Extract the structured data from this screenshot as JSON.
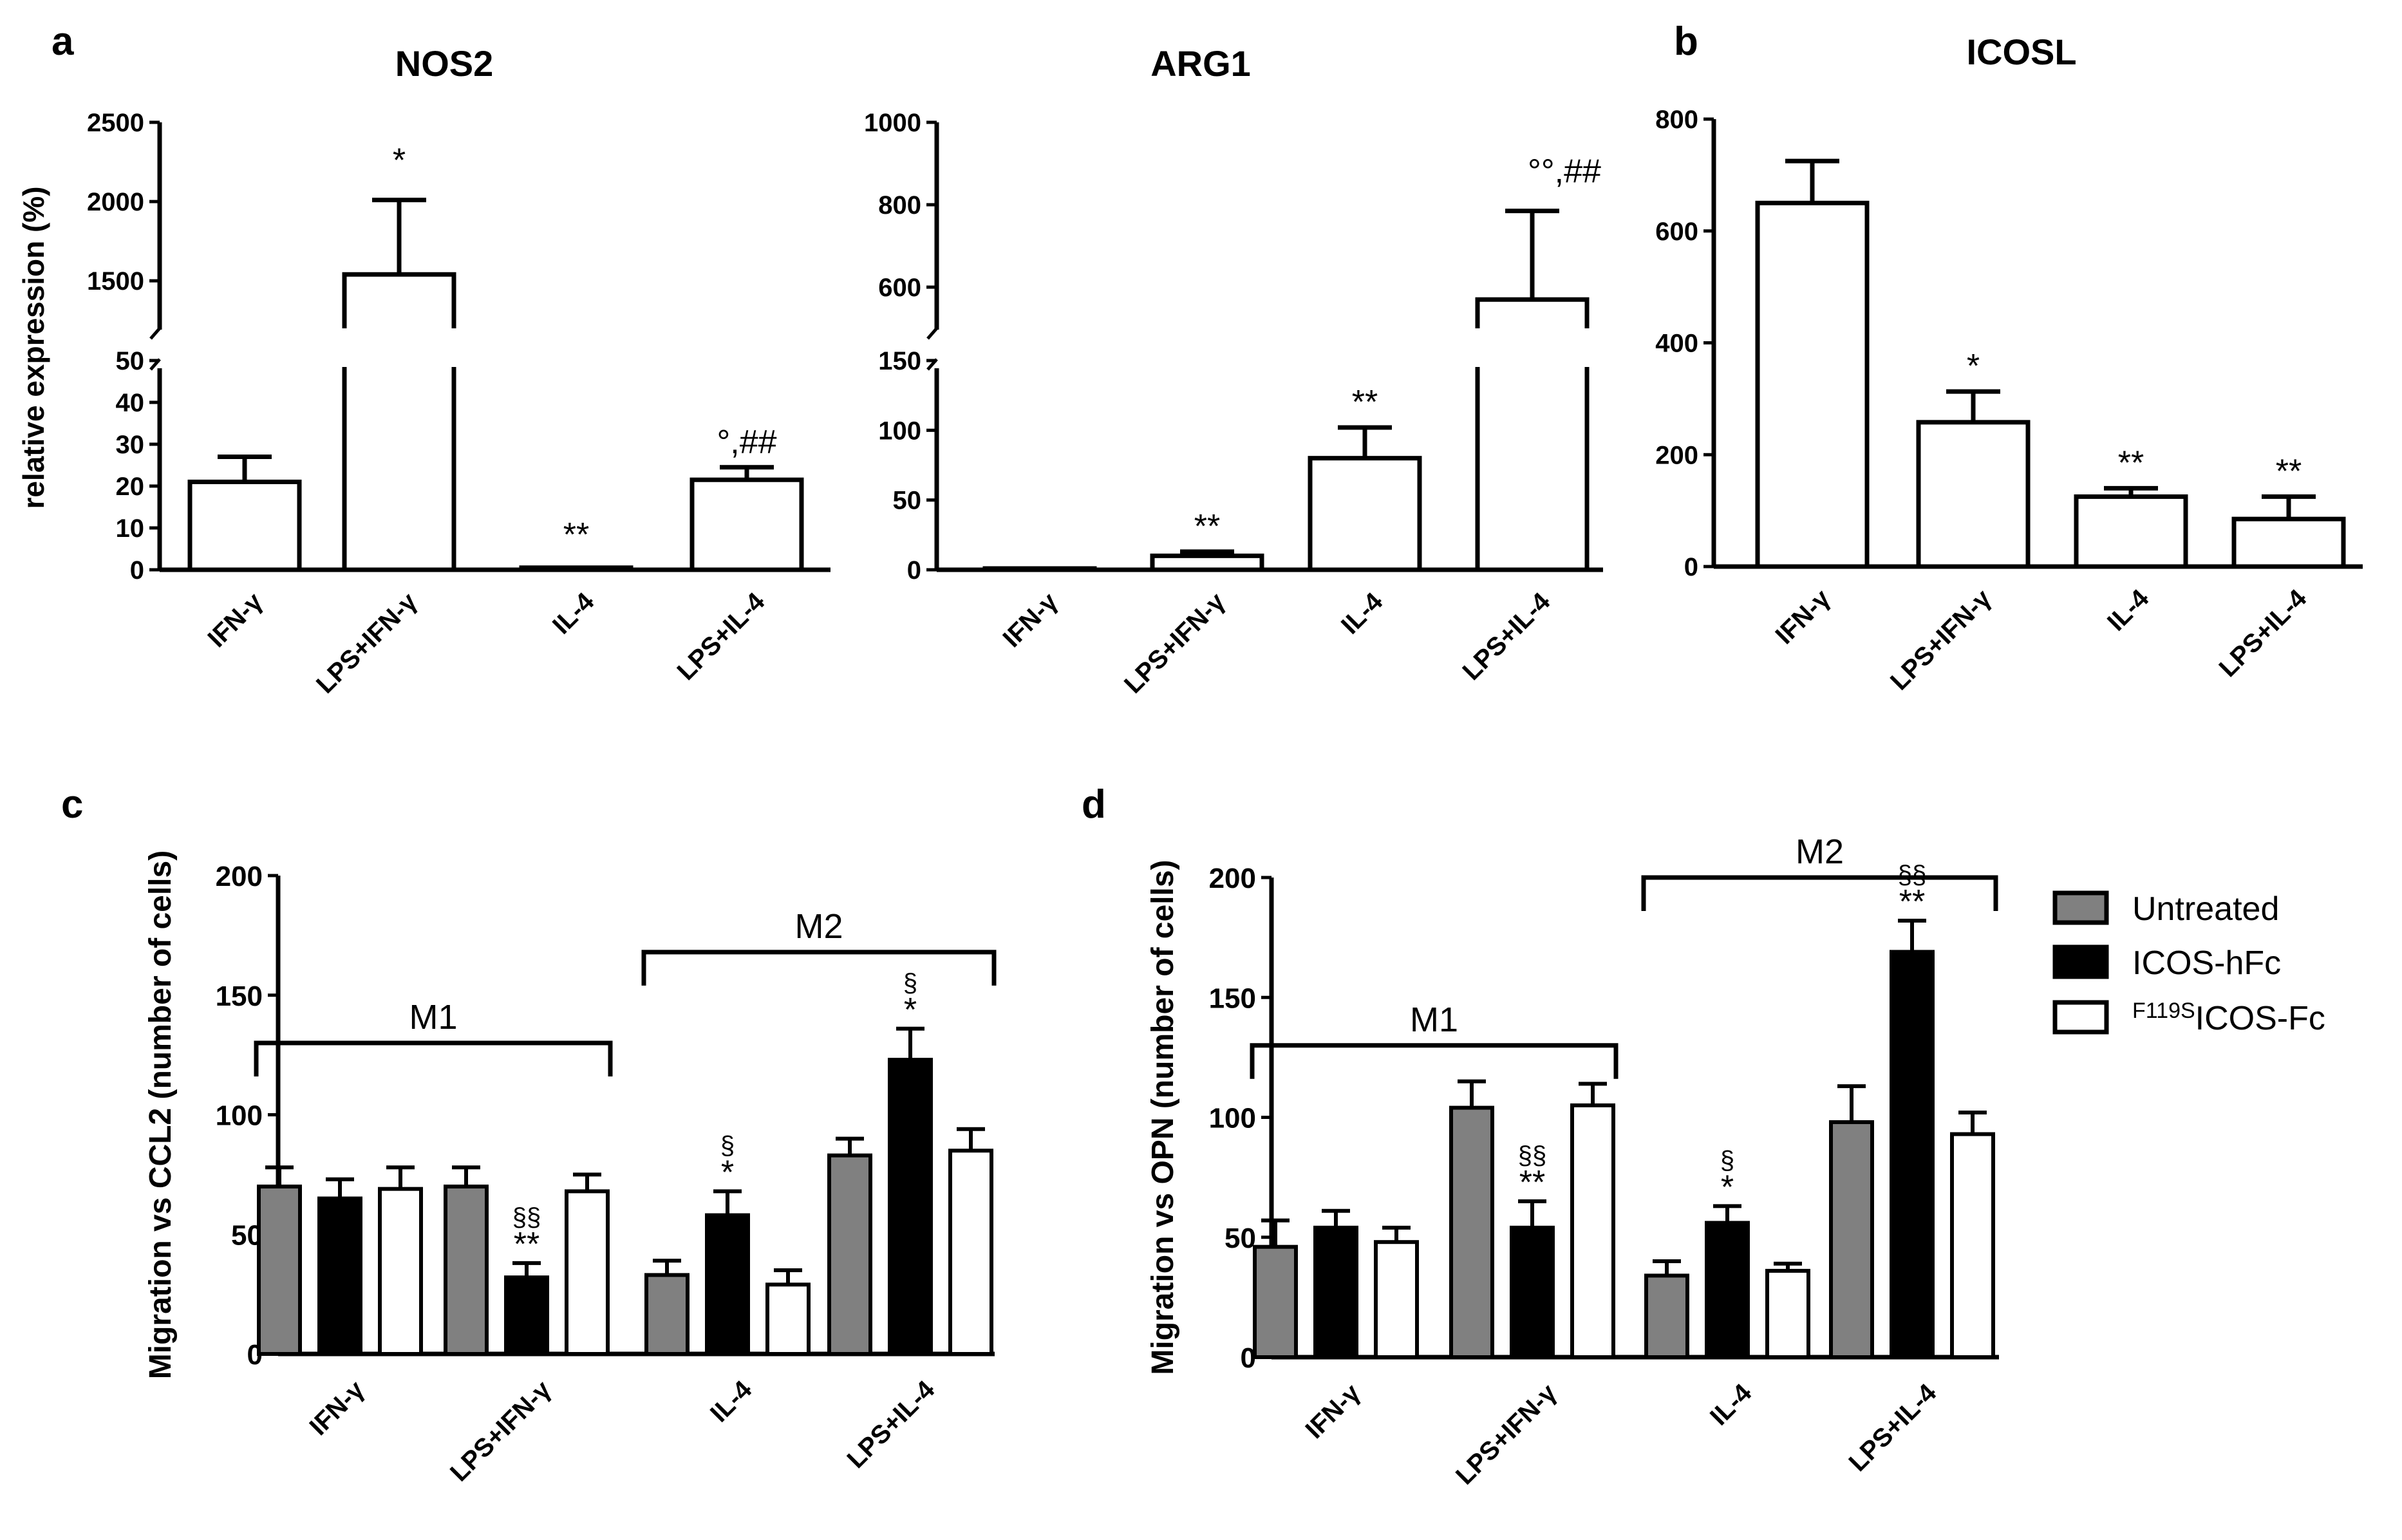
{
  "chart_data": [
    {
      "panel": "a",
      "title": "NOS2",
      "type": "bar",
      "broken_axis": true,
      "ylabel": "relative expression (%)",
      "categories": [
        "IFN-γ",
        "LPS+IFN-γ",
        "IL-4",
        "LPS+IL-4"
      ],
      "values": [
        21,
        1540,
        0.5,
        21.5
      ],
      "errors": [
        6,
        470,
        0,
        3
      ],
      "annotations": [
        "",
        "*",
        "**",
        "°,##"
      ],
      "lower_ylim": [
        0,
        50
      ],
      "lower_ticks": [
        "0",
        "10",
        "20",
        "30",
        "40",
        "50"
      ],
      "upper_ylim": [
        1200,
        2500
      ],
      "upper_ticks": [
        "1500",
        "2000",
        "2500"
      ]
    },
    {
      "panel": "",
      "title": "ARG1",
      "type": "bar",
      "broken_axis": true,
      "categories": [
        "IFN-γ",
        "LPS+IFN-γ",
        "IL-4",
        "LPS+IL-4"
      ],
      "values": [
        0,
        10,
        80,
        570
      ],
      "errors": [
        0,
        3,
        22,
        215
      ],
      "annotations": [
        "",
        "**",
        "**",
        "°°,##"
      ],
      "lower_ylim": [
        0,
        150
      ],
      "lower_ticks": [
        "0",
        "50",
        "100",
        "150"
      ],
      "upper_ylim": [
        500,
        1000
      ],
      "upper_ticks": [
        "600",
        "800",
        "1000"
      ]
    },
    {
      "panel": "b",
      "title": "ICOSL",
      "type": "bar",
      "broken_axis": false,
      "categories": [
        "IFN-γ",
        "LPS+IFN-γ",
        "IL-4",
        "LPS+IL-4"
      ],
      "values": [
        650,
        258,
        125,
        85
      ],
      "errors": [
        75,
        55,
        15,
        40
      ],
      "annotations": [
        "",
        "*",
        "**",
        "**"
      ],
      "ylim": [
        0,
        800
      ],
      "ticks": [
        "0",
        "200",
        "400",
        "600",
        "800"
      ]
    },
    {
      "panel": "c",
      "type": "bar",
      "ylabel": "Migration vs CCL2 (number of cells)",
      "categories": [
        "IFN-γ",
        "LPS+IFN-γ",
        "IL-4",
        "LPS+IL-4"
      ],
      "ylim": [
        0,
        200
      ],
      "ticks": [
        "0",
        "50",
        "100",
        "150",
        "200"
      ],
      "series": [
        {
          "name": "Untreated",
          "values": [
            70,
            70,
            33,
            83
          ],
          "errors": [
            8,
            8,
            6,
            7
          ]
        },
        {
          "name": "ICOS-hFc",
          "values": [
            65,
            32,
            58,
            123
          ],
          "errors": [
            8,
            6,
            10,
            13
          ]
        },
        {
          "name": "F119SICOS-Fc",
          "values": [
            69,
            68,
            29,
            85
          ],
          "errors": [
            9,
            7,
            6,
            9
          ]
        }
      ],
      "annotations": [
        {
          "category": 1,
          "series": 1,
          "stars": "**",
          "section": "§§"
        },
        {
          "category": 2,
          "series": 1,
          "stars": "*",
          "section": "§"
        },
        {
          "category": 3,
          "series": 1,
          "stars": "*",
          "section": "§"
        }
      ],
      "groups": [
        {
          "label": "M1",
          "from": 0,
          "to": 1,
          "level": 130
        },
        {
          "label": "M2",
          "from": 2,
          "to": 3,
          "level": 168
        }
      ]
    },
    {
      "panel": "d",
      "type": "bar",
      "ylabel": "Migration vs OPN (number of cells)",
      "categories": [
        "IFN-γ",
        "LPS+IFN-γ",
        "IL-4",
        "LPS+IL-4"
      ],
      "ylim": [
        0,
        200
      ],
      "ticks": [
        "0",
        "50",
        "100",
        "150",
        "200"
      ],
      "series": [
        {
          "name": "Untreated",
          "values": [
            46,
            104,
            34,
            98
          ],
          "errors": [
            11,
            11,
            6,
            15
          ]
        },
        {
          "name": "ICOS-hFc",
          "values": [
            54,
            54,
            56,
            169
          ],
          "errors": [
            7,
            11,
            7,
            13
          ]
        },
        {
          "name": "F119SICOS-Fc",
          "values": [
            48,
            105,
            36,
            93
          ],
          "errors": [
            6,
            9,
            3,
            9
          ]
        }
      ],
      "annotations": [
        {
          "category": 1,
          "series": 1,
          "stars": "**",
          "section": "§§"
        },
        {
          "category": 2,
          "series": 1,
          "stars": "*",
          "section": "§"
        },
        {
          "category": 3,
          "series": 1,
          "stars": "**",
          "section": "§§"
        }
      ],
      "groups": [
        {
          "label": "M1",
          "from": 0,
          "to": 1,
          "level": 130
        },
        {
          "label": "M2",
          "from": 2,
          "to": 3,
          "level": 200
        }
      ]
    }
  ],
  "legend": {
    "items": [
      {
        "label": "Untreated",
        "color": "#808080"
      },
      {
        "label": "ICOS-hFc",
        "color": "#000000"
      },
      {
        "label": "ICOS-Fc",
        "superscript": "F119S",
        "color": "#ffffff"
      }
    ]
  },
  "colors": {
    "untreated": "#808080",
    "icos_hfc": "#000000",
    "f119s": "#ffffff",
    "stroke": "#000000"
  }
}
